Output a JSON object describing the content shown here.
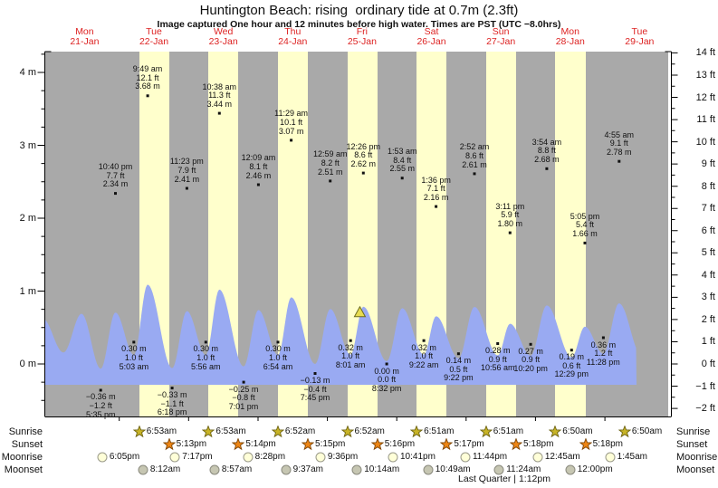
{
  "title": "Huntington Beach: rising  ordinary tide at 0.7m (2.3ft)",
  "subtitle": "Image captured One hour and 12 minutes before high water. Times are PST (UTC −8.0hrs)",
  "chart_data": {
    "type": "area",
    "title": "Huntington Beach: rising  ordinary tide at 0.7m (2.3ft)",
    "days": [
      {
        "dow": "Mon",
        "date": "21-Jan"
      },
      {
        "dow": "Tue",
        "date": "22-Jan"
      },
      {
        "dow": "Wed",
        "date": "23-Jan"
      },
      {
        "dow": "Thu",
        "date": "24-Jan"
      },
      {
        "dow": "Fri",
        "date": "25-Jan"
      },
      {
        "dow": "Sat",
        "date": "26-Jan"
      },
      {
        "dow": "Sun",
        "date": "27-Jan"
      },
      {
        "dow": "Mon",
        "date": "28-Jan"
      },
      {
        "dow": "Tue",
        "date": "29-Jan"
      }
    ],
    "y_axis_left": {
      "unit": "m",
      "ticks": [
        4,
        3,
        2,
        1,
        0
      ],
      "minor_step": 0.25,
      "range_m": [
        -0.72,
        4.29
      ]
    },
    "y_axis_right": {
      "unit": "ft",
      "ticks": [
        14,
        13,
        12,
        11,
        10,
        9,
        8,
        7,
        6,
        5,
        4,
        3,
        2,
        1,
        0,
        -1,
        -2
      ],
      "minor_step": 0.5
    },
    "tide_events": [
      {
        "day": 0,
        "type": "low",
        "time": "5:35 pm",
        "m": "−0.36 m",
        "ft": "−1.2 ft"
      },
      {
        "day": 0,
        "type": "high",
        "time": "10:40 pm",
        "m": "2.34 m",
        "ft": "7.7 ft"
      },
      {
        "day": 1,
        "type": "low",
        "time": "5:03 am",
        "m": "0.30 m",
        "ft": "1.0 ft"
      },
      {
        "day": 1,
        "type": "high",
        "time": "9:49 am",
        "m": "3.68 m",
        "ft": "12.1 ft"
      },
      {
        "day": 1,
        "type": "low",
        "time": "6:18 pm",
        "m": "−0.33 m",
        "ft": "−1.1 ft"
      },
      {
        "day": 1,
        "type": "high",
        "time": "11:23 pm",
        "m": "2.41 m",
        "ft": "7.9 ft"
      },
      {
        "day": 2,
        "type": "low",
        "time": "5:56 am",
        "m": "0.30 m",
        "ft": "1.0 ft"
      },
      {
        "day": 2,
        "type": "high",
        "time": "10:38 am",
        "m": "3.44 m",
        "ft": "11.3 ft"
      },
      {
        "day": 2,
        "type": "low",
        "time": "7:01 pm",
        "m": "−0.25 m",
        "ft": "−0.8 ft"
      },
      {
        "day": 3,
        "type": "high",
        "time": "12:09 am",
        "m": "2.46 m",
        "ft": "8.1 ft"
      },
      {
        "day": 3,
        "type": "low",
        "time": "6:54 am",
        "m": "0.30 m",
        "ft": "1.0 ft"
      },
      {
        "day": 3,
        "type": "high",
        "time": "11:29 am",
        "m": "3.07 m",
        "ft": "10.1 ft"
      },
      {
        "day": 3,
        "type": "low",
        "time": "7:45 pm",
        "m": "−0.13 m",
        "ft": "−0.4 ft"
      },
      {
        "day": 4,
        "type": "high",
        "time": "12:59 am",
        "m": "2.51 m",
        "ft": "8.2 ft"
      },
      {
        "day": 4,
        "type": "low",
        "time": "8:01 am",
        "m": "0.32 m",
        "ft": "1.0 ft"
      },
      {
        "day": 4,
        "type": "high",
        "time": "12:26 pm",
        "m": "2.62 m",
        "ft": "8.6 ft"
      },
      {
        "day": 4,
        "type": "low",
        "time": "8:32 pm",
        "m": "0.00 m",
        "ft": "0.0 ft"
      },
      {
        "day": 5,
        "type": "high",
        "time": "1:53 am",
        "m": "2.55 m",
        "ft": "8.4 ft"
      },
      {
        "day": 5,
        "type": "low",
        "time": "9:22 am",
        "m": "0.32 m",
        "ft": "1.0 ft"
      },
      {
        "day": 5,
        "type": "high",
        "time": "1:36 pm",
        "m": "2.16 m",
        "ft": "7.1 ft"
      },
      {
        "day": 5,
        "type": "low",
        "time": "9:22 pm",
        "m": "0.14 m",
        "ft": "0.5 ft"
      },
      {
        "day": 6,
        "type": "high",
        "time": "2:52 am",
        "m": "2.61 m",
        "ft": "8.6 ft"
      },
      {
        "day": 6,
        "type": "low",
        "time": "10:56 am",
        "m": "0.28 m",
        "ft": "0.9 ft"
      },
      {
        "day": 6,
        "type": "high",
        "time": "3:11 pm",
        "m": "1.80 m",
        "ft": "5.9 ft"
      },
      {
        "day": 6,
        "type": "low",
        "time": "10:20 pm",
        "m": "0.27 m",
        "ft": "0.9 ft"
      },
      {
        "day": 7,
        "type": "high",
        "time": "3:54 am",
        "m": "2.68 m",
        "ft": "8.8 ft"
      },
      {
        "day": 7,
        "type": "low",
        "time": "12:29 pm",
        "m": "0.19 m",
        "ft": "0.6 ft"
      },
      {
        "day": 7,
        "type": "high",
        "time": "5:05 pm",
        "m": "1.66 m",
        "ft": "5.4 ft"
      },
      {
        "day": 7,
        "type": "low",
        "time": "11:28 pm",
        "m": "0.36 m",
        "ft": "1.2 ft"
      },
      {
        "day": 8,
        "type": "high",
        "time": "4:55 am",
        "m": "2.78 m",
        "ft": "9.1 ft"
      }
    ],
    "edge_extremes": [
      {
        "d": -0.104,
        "v": 2.05
      },
      {
        "d": 0.195,
        "v": 0.42
      },
      {
        "d": 0.456,
        "v": 2.28
      },
      {
        "d": 8.53,
        "v": 0.28
      }
    ],
    "now_marker": {
      "day": 4,
      "time": "11:14 am"
    },
    "curve_end_day": 8.458
  },
  "astro": {
    "rows": [
      {
        "label": "Sunrise",
        "icon": "sunrise-icon",
        "events": [
          {
            "day": 1,
            "time": "6:53am"
          },
          {
            "day": 2,
            "time": "6:53am"
          },
          {
            "day": 3,
            "time": "6:52am"
          },
          {
            "day": 4,
            "time": "6:52am"
          },
          {
            "day": 5,
            "time": "6:51am"
          },
          {
            "day": 6,
            "time": "6:51am"
          },
          {
            "day": 7,
            "time": "6:50am"
          },
          {
            "day": 8,
            "time": "6:50am"
          }
        ]
      },
      {
        "label": "Sunset",
        "icon": "sunset-icon",
        "events": [
          {
            "day": 1,
            "time": "5:13pm"
          },
          {
            "day": 2,
            "time": "5:14pm"
          },
          {
            "day": 3,
            "time": "5:15pm"
          },
          {
            "day": 4,
            "time": "5:16pm"
          },
          {
            "day": 5,
            "time": "5:17pm"
          },
          {
            "day": 6,
            "time": "5:18pm"
          },
          {
            "day": 7,
            "time": "5:18pm"
          }
        ]
      },
      {
        "label": "Moonrise",
        "icon": "moonrise-icon",
        "events": [
          {
            "day": 0,
            "time": "6:05pm"
          },
          {
            "day": 1,
            "time": "7:17pm"
          },
          {
            "day": 2,
            "time": "8:28pm"
          },
          {
            "day": 3,
            "time": "9:36pm"
          },
          {
            "day": 4,
            "time": "10:41pm"
          },
          {
            "day": 5,
            "time": "11:44pm"
          },
          {
            "day": 7,
            "time": "12:45am"
          },
          {
            "day": 8,
            "time": "1:45am"
          }
        ]
      },
      {
        "label": "Moonset",
        "icon": "moonset-icon",
        "events": [
          {
            "day": 1,
            "time": "8:12am"
          },
          {
            "day": 2,
            "time": "8:57am"
          },
          {
            "day": 3,
            "time": "9:37am"
          },
          {
            "day": 4,
            "time": "10:14am"
          },
          {
            "day": 5,
            "time": "10:49am"
          },
          {
            "day": 6,
            "time": "11:24am"
          },
          {
            "day": 7,
            "time": "12:00pm"
          }
        ]
      }
    ],
    "moon_phase": "Last Quarter | 1:12pm"
  },
  "colors": {
    "plot_bg": "#a9a9a9",
    "daylight_band": "#ffffcc",
    "tide_fill": "#99aaf2",
    "day_label": "#dd2222",
    "axis": "#000000",
    "marker_fill": "#e8dc50",
    "marker_border": "#6b6b1e",
    "sunrise_fill": "#c8b426",
    "sunrise_border": "#6e6414",
    "sunset_fill": "#ed8514",
    "sunset_border": "#7e4506",
    "moonrise_fill": "#ffffd8",
    "moonrise_border": "#9a9a8a",
    "moonset_fill": "#c6c6b2",
    "moonset_border": "#8a8a7e"
  }
}
